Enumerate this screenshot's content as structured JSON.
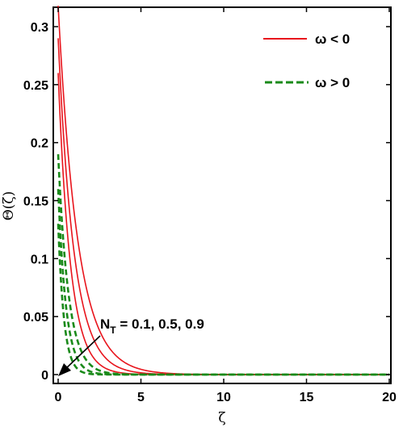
{
  "chart_data": {
    "type": "line",
    "title": "",
    "xlabel": "ζ",
    "ylabel": "Θ(ζ)",
    "xlim": [
      0,
      20
    ],
    "ylim": [
      -0.005,
      0.33
    ],
    "xticks": [
      0,
      5,
      10,
      15,
      20
    ],
    "xtick_labels": [
      "0",
      "5",
      "10",
      "15",
      "20"
    ],
    "yticks": [
      0,
      0.05,
      0.1,
      0.15,
      0.2,
      0.25,
      0.3
    ],
    "ytick_labels": [
      "0",
      "0.05",
      "0.1",
      "0.15",
      "0.2",
      "0.25",
      "0.3"
    ],
    "grid": false,
    "legend": {
      "placement": "top-right",
      "entries": [
        {
          "label": "ω < 0",
          "color": "#e8141c",
          "style": "solid"
        },
        {
          "label": "ω > 0",
          "color": "#1a8a1a",
          "style": "dashed"
        }
      ]
    },
    "annotation": {
      "prefix": "N",
      "subscript": "T",
      "text": " = 0.1, 0.5, 0.9"
    },
    "series": [
      {
        "group": "ω < 0",
        "color": "#e8141c",
        "style": "solid",
        "amplitude": 0.318,
        "decay": 0.85
      },
      {
        "group": "ω < 0",
        "color": "#e8141c",
        "style": "solid",
        "amplitude": 0.29,
        "decay": 1.05
      },
      {
        "group": "ω < 0",
        "color": "#e8141c",
        "style": "solid",
        "amplitude": 0.26,
        "decay": 1.35
      },
      {
        "group": "ω > 0",
        "color": "#1a8a1a",
        "style": "dashed",
        "amplitude": 0.19,
        "decay": 1.6
      },
      {
        "group": "ω > 0",
        "color": "#1a8a1a",
        "style": "dashed",
        "amplitude": 0.16,
        "decay": 2.1
      },
      {
        "group": "ω > 0",
        "color": "#1a8a1a",
        "style": "dashed",
        "amplitude": 0.13,
        "decay": 2.8
      }
    ]
  }
}
